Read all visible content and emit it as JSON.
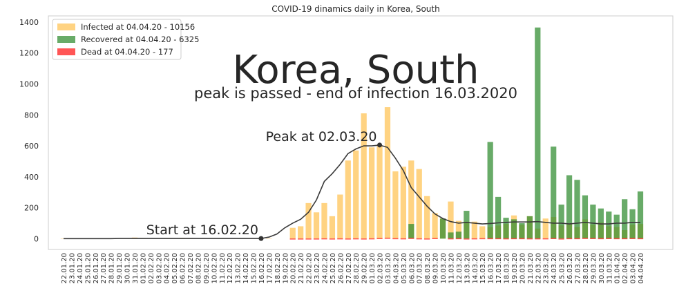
{
  "chart_data": {
    "type": "bar",
    "title": "COVID-19 dinamics daily in Korea, South",
    "big_title": "Korea, South",
    "subtitle": "peak is passed - end of infection 16.03.2020",
    "ylim": [
      -70,
      1440
    ],
    "yticks": [
      0,
      200,
      400,
      600,
      800,
      1000,
      1200,
      1400
    ],
    "grid": false,
    "legend_position": "top-left",
    "colors": {
      "infected": "#ffc04d",
      "recovered": "#2e8b2e",
      "dead": "#ff2a2a",
      "trend": "#3a3a3a"
    },
    "legend": [
      {
        "key": "infected",
        "label": "Infected at 04.04.20 - 10156"
      },
      {
        "key": "recovered",
        "label": "Recovered at 04.04.20 - 6325"
      },
      {
        "key": "dead",
        "label": "Dead at 04.04.20 - 177"
      }
    ],
    "categories": [
      "22.01.20",
      "23.01.20",
      "24.01.20",
      "25.01.20",
      "26.01.20",
      "27.01.20",
      "28.01.20",
      "29.01.20",
      "30.01.20",
      "31.01.20",
      "01.02.20",
      "02.02.20",
      "03.02.20",
      "04.02.20",
      "05.02.20",
      "06.02.20",
      "07.02.20",
      "08.02.20",
      "09.02.20",
      "10.02.20",
      "11.02.20",
      "12.02.20",
      "13.02.20",
      "14.02.20",
      "15.02.20",
      "16.02.20",
      "17.02.20",
      "18.02.20",
      "19.02.20",
      "20.02.20",
      "21.02.20",
      "22.02.20",
      "23.02.20",
      "24.02.20",
      "25.02.20",
      "26.02.20",
      "27.02.20",
      "28.02.20",
      "29.02.20",
      "01.03.20",
      "02.03.20",
      "03.03.20",
      "04.03.20",
      "05.03.20",
      "06.03.20",
      "07.03.20",
      "08.03.20",
      "09.03.20",
      "10.03.20",
      "11.03.20",
      "12.03.20",
      "13.03.20",
      "14.03.20",
      "15.03.20",
      "16.03.20",
      "17.03.20",
      "18.03.20",
      "19.03.20",
      "20.03.20",
      "21.03.20",
      "22.03.20",
      "23.03.20",
      "24.03.20",
      "25.03.20",
      "26.03.20",
      "27.03.20",
      "28.03.20",
      "29.03.20",
      "30.03.20",
      "31.03.20",
      "01.04.20",
      "02.04.20",
      "03.04.20",
      "04.04.20"
    ],
    "series": [
      {
        "key": "infected",
        "name": "Infected at 04.04.20 - 10156",
        "values": [
          1,
          0,
          1,
          0,
          0,
          1,
          0,
          0,
          0,
          7,
          1,
          0,
          3,
          1,
          0,
          5,
          1,
          0,
          0,
          0,
          1,
          0,
          0,
          0,
          0,
          1,
          1,
          0,
          0,
          70,
          80,
          230,
          170,
          230,
          145,
          285,
          505,
          570,
          810,
          590,
          600,
          850,
          435,
          465,
          505,
          450,
          275,
          165,
          130,
          240,
          115,
          110,
          110,
          80,
          75,
          85,
          95,
          150,
          90,
          145,
          65,
          130,
          140,
          85,
          95,
          75,
          125,
          90,
          105,
          80,
          75,
          55,
          90,
          95
        ]
      },
      {
        "key": "recovered",
        "name": "Recovered at 04.04.20 - 6325",
        "values": [
          0,
          0,
          0,
          0,
          0,
          0,
          0,
          0,
          0,
          0,
          0,
          0,
          0,
          0,
          0,
          0,
          0,
          0,
          0,
          0,
          0,
          0,
          0,
          0,
          0,
          0,
          0,
          0,
          0,
          0,
          0,
          0,
          0,
          0,
          0,
          0,
          0,
          0,
          0,
          0,
          0,
          0,
          0,
          0,
          95,
          0,
          0,
          0,
          130,
          40,
          45,
          180,
          0,
          0,
          625,
          270,
          135,
          125,
          100,
          145,
          1365,
          0,
          595,
          220,
          410,
          380,
          280,
          220,
          195,
          175,
          155,
          255,
          190,
          305
        ]
      },
      {
        "key": "dead",
        "name": "Dead at 04.04.20 - 177",
        "values": [
          0,
          0,
          0,
          0,
          0,
          0,
          0,
          0,
          0,
          0,
          0,
          0,
          0,
          0,
          0,
          0,
          0,
          0,
          0,
          0,
          0,
          0,
          0,
          0,
          0,
          0,
          0,
          0,
          0,
          1,
          1,
          1,
          1,
          2,
          1,
          2,
          1,
          2,
          1,
          2,
          4,
          6,
          3,
          2,
          5,
          2,
          1,
          4,
          0,
          2,
          3,
          1,
          2,
          3,
          3,
          3,
          2,
          3,
          3,
          2,
          2,
          2,
          4,
          1,
          3,
          3,
          5,
          4,
          3,
          4,
          3,
          3,
          4,
          3
        ]
      }
    ],
    "trend": [
      0,
      0,
      0,
      0,
      0,
      0,
      0,
      1,
      1,
      1,
      1,
      1,
      1,
      1,
      1,
      1,
      1,
      1,
      1,
      1,
      1,
      1,
      1,
      1,
      1,
      1,
      10,
      30,
      70,
      100,
      125,
      170,
      250,
      370,
      420,
      480,
      550,
      580,
      600,
      600,
      605,
      590,
      520,
      440,
      330,
      270,
      210,
      160,
      130,
      110,
      100,
      105,
      100,
      95,
      98,
      102,
      105,
      108,
      108,
      108,
      110,
      105,
      100,
      100,
      95,
      100,
      105,
      100,
      95,
      95,
      100,
      100,
      105,
      105
    ],
    "annotations": [
      {
        "label": "Peak at 02.03.20",
        "x": "02.03.20",
        "y": 605
      },
      {
        "label": "Start at 16.02.20",
        "x": "16.02.20",
        "y": 1
      }
    ]
  }
}
